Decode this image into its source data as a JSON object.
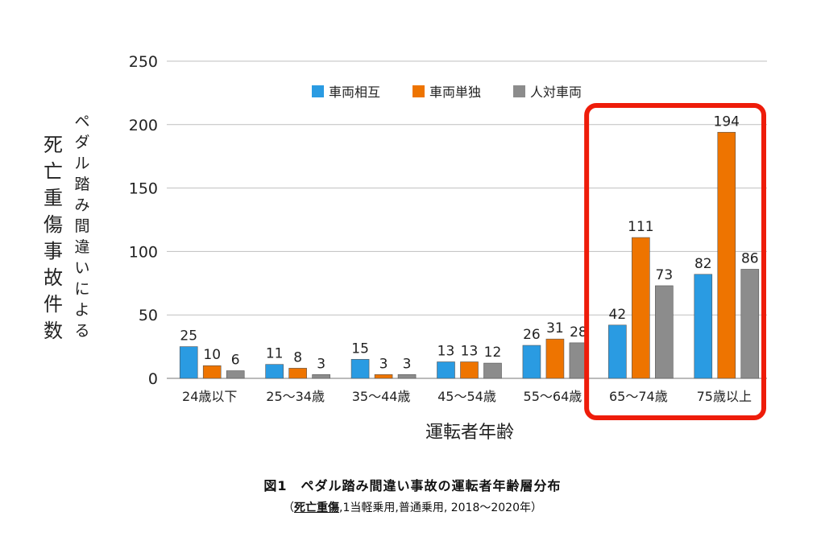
{
  "chart_data": {
    "type": "bar",
    "title": "",
    "ylabel_main": "死亡重傷事故件数",
    "ylabel_sub": "ペダル踏み間違いによる",
    "xlabel": "運転者年齢",
    "ylim": [
      0,
      250
    ],
    "yticks": [
      "0",
      "50",
      "100",
      "150",
      "200",
      "250"
    ],
    "grid": true,
    "legend_position": "top",
    "categories": [
      "24歳以下",
      "25～34歳",
      "35～44歳",
      "45～54歳",
      "55～64歳",
      "65～74歳",
      "75歳以上"
    ],
    "series": [
      {
        "name": "車両相互",
        "color": "#2a9be2",
        "values": [
          25,
          11,
          15,
          13,
          26,
          42,
          82
        ]
      },
      {
        "name": "車両単独",
        "color": "#ee7400",
        "values": [
          10,
          8,
          3,
          13,
          31,
          111,
          194
        ]
      },
      {
        "name": "人対車両",
        "color": "#8c8c8c",
        "values": [
          6,
          3,
          3,
          12,
          28,
          73,
          86
        ]
      }
    ],
    "highlight": {
      "categories": [
        "65～74歳",
        "75歳以上"
      ],
      "color": "#ee1c0a"
    }
  },
  "caption": {
    "title": "図1　ペダル踏み間違い事故の運転者年齢層分布",
    "open_paren": "（",
    "underlined": "死亡重傷",
    "rest": ",1当軽乗用,普通乗用, 2018～2020年）"
  }
}
